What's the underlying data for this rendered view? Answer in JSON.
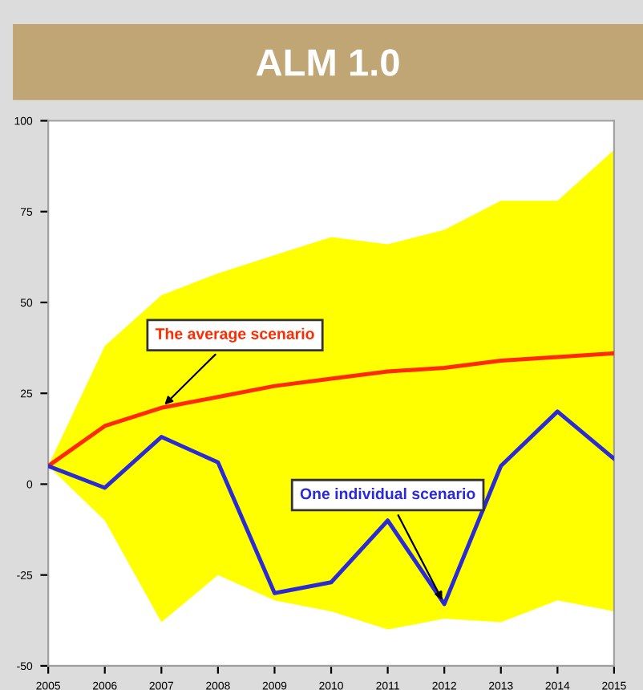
{
  "chart_data": {
    "type": "line",
    "title": "ALM 1.0",
    "x": [
      2005,
      2006,
      2007,
      2008,
      2009,
      2010,
      2011,
      2012,
      2013,
      2014,
      2015
    ],
    "series": [
      {
        "color": "#ff2a00",
        "values": [
          5,
          16,
          21,
          24,
          27,
          29,
          31,
          32,
          34,
          35,
          36
        ],
        "lower": [
          5,
          -10,
          -38,
          -25,
          -32,
          -35,
          -40,
          -37,
          -38,
          -32,
          -35
        ],
        "upper": [
          5,
          38,
          52,
          58,
          63,
          68,
          66,
          70,
          78,
          78,
          92
        ]
      },
      {
        "color": "#2b2bd6",
        "values": [
          5,
          -1,
          13,
          6,
          -30,
          -27,
          -10,
          -33,
          5,
          20,
          7
        ]
      }
    ],
    "xlim": [
      2005,
      2015
    ],
    "xticks": [
      2005,
      2006,
      2007,
      2008,
      2009,
      2010,
      2011,
      2012,
      2013,
      2014,
      2015
    ],
    "ylim": [
      -50,
      100
    ],
    "yticks": [
      -50,
      -25,
      0,
      25,
      50,
      75,
      100
    ],
    "annotations": [
      {
        "text": "The average scenario",
        "x": 2007,
        "y": 21
      },
      {
        "text": "One individual scenario",
        "x": 2012,
        "y": -33
      }
    ],
    "grid": false,
    "legend": false
  }
}
